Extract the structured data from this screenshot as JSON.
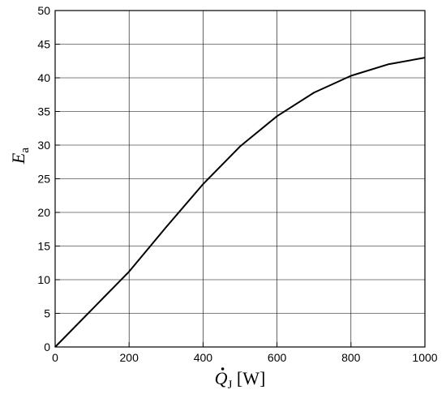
{
  "chart_data": {
    "type": "line",
    "title": "",
    "xlabel": {
      "symbol": "Q",
      "subscript": "J",
      "unit": "[W]",
      "overdot": true
    },
    "ylabel": {
      "symbol": "E",
      "subscript": "a"
    },
    "xlim": [
      0,
      1000
    ],
    "ylim": [
      0,
      50
    ],
    "xticks": [
      0,
      200,
      400,
      600,
      800,
      1000
    ],
    "yticks": [
      0,
      5,
      10,
      15,
      20,
      25,
      30,
      35,
      40,
      45,
      50
    ],
    "xtick_labels": [
      "0",
      "200",
      "400",
      "600",
      "800",
      "1000"
    ],
    "ytick_labels": [
      "0",
      "5",
      "10",
      "15",
      "20",
      "25",
      "30",
      "35",
      "40",
      "45",
      "50"
    ],
    "grid": true,
    "series": [
      {
        "color": "#000000",
        "x": [
          0,
          100,
          200,
          300,
          400,
          500,
          600,
          700,
          800,
          900,
          1000
        ],
        "y": [
          0,
          5.6,
          11.2,
          17.8,
          24.2,
          29.8,
          34.3,
          37.8,
          40.3,
          42.0,
          43.0
        ]
      }
    ]
  }
}
